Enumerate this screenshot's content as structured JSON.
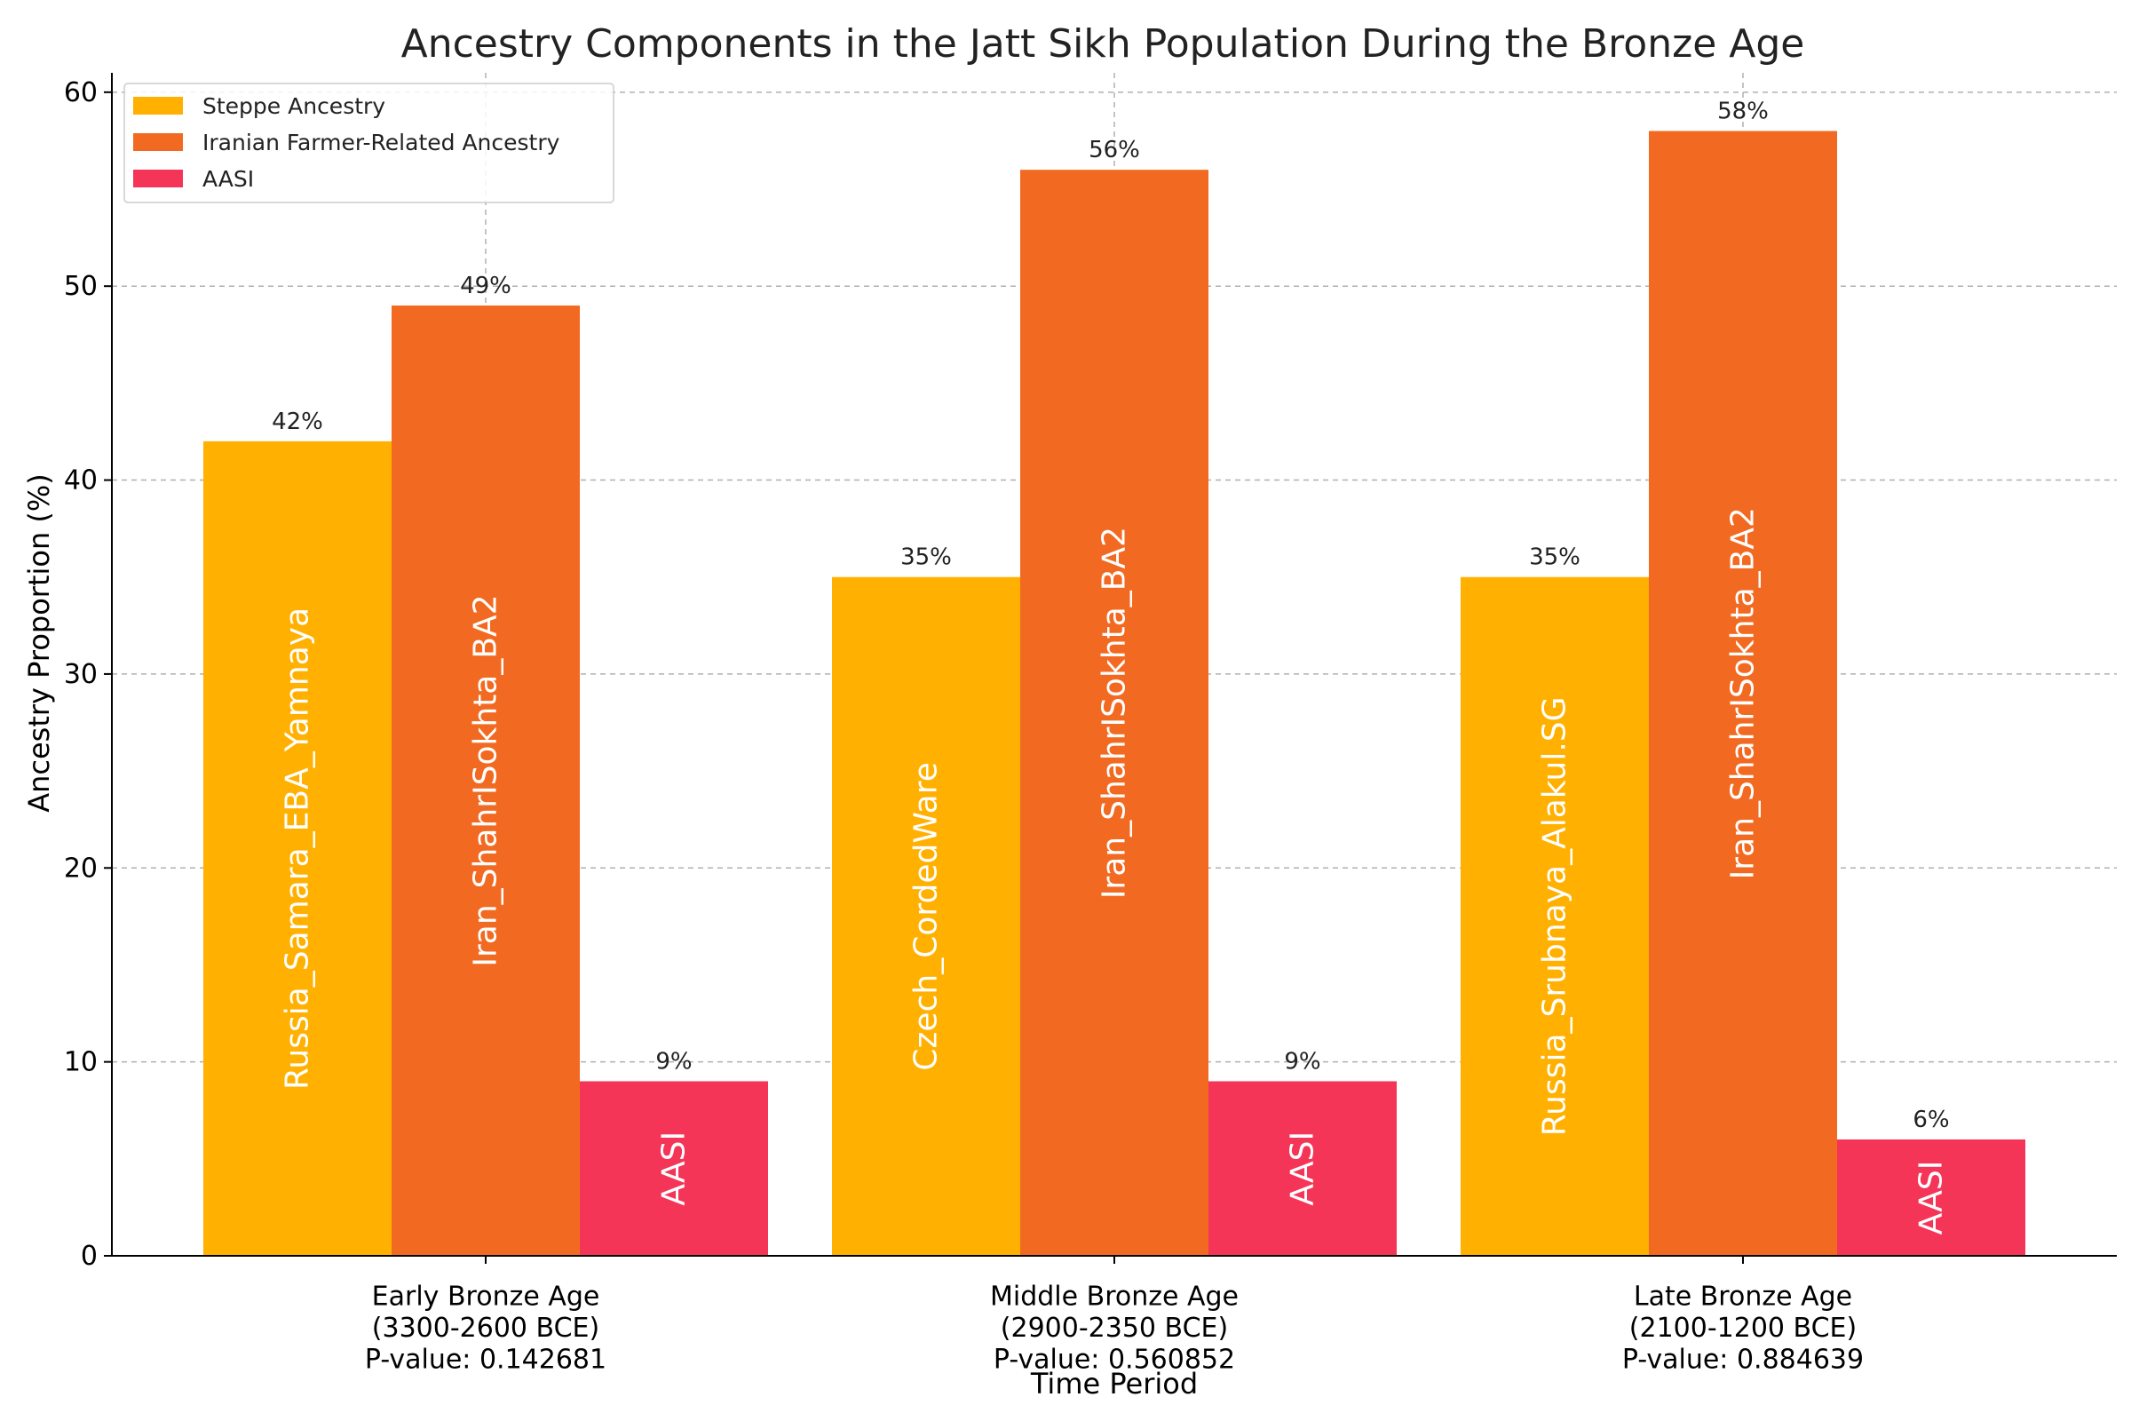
{
  "chart_data": {
    "type": "bar",
    "title": "Ancestry Components in the Jatt Sikh Population During the Bronze Age",
    "xlabel": "Time Period",
    "ylabel": "Ancestry Proportion (%)",
    "ylim": [
      0,
      61
    ],
    "yticks": [
      0,
      10,
      20,
      30,
      40,
      50,
      60
    ],
    "grid": true,
    "legend_position": "top-left",
    "categories": [
      [
        "Early Bronze Age",
        "(3300-2600 BCE)",
        "P-value: 0.142681"
      ],
      [
        "Middle Bronze Age",
        "(2900-2350 BCE)",
        "P-value: 0.560852"
      ],
      [
        "Late Bronze Age",
        "(2100-1200 BCE)",
        "P-value: 0.884639"
      ]
    ],
    "series": [
      {
        "name": "Steppe Ancestry",
        "color": "#FFB000",
        "values": [
          42,
          35,
          35
        ],
        "value_labels": [
          "42%",
          "35%",
          "35%"
        ],
        "bar_labels": [
          "Russia_Samara_EBA_Yamnaya",
          "Czech_CordedWare",
          "Russia_Srubnaya_Alakul.SG"
        ]
      },
      {
        "name": "Iranian Farmer-Related Ancestry",
        "color": "#F26A21",
        "values": [
          49,
          56,
          58
        ],
        "value_labels": [
          "49%",
          "56%",
          "58%"
        ],
        "bar_labels": [
          "Iran_ShahrISokhta_BA2",
          "Iran_ShahrISokhta_BA2",
          "Iran_ShahrISokhta_BA2"
        ]
      },
      {
        "name": "AASI",
        "color": "#F53558",
        "values": [
          9,
          9,
          6
        ],
        "value_labels": [
          "9%",
          "9%",
          "6%"
        ],
        "bar_labels": [
          "AASI",
          "AASI",
          "AASI"
        ]
      }
    ]
  }
}
